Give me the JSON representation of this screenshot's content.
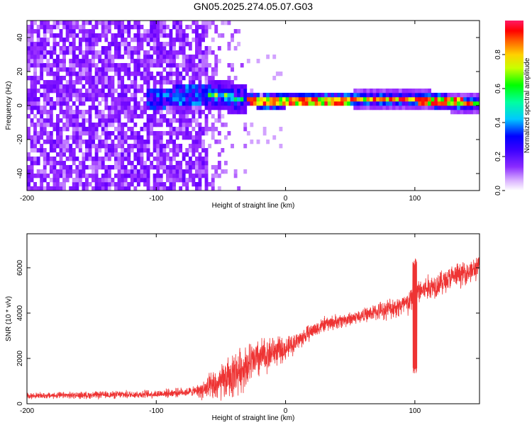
{
  "title": "GN05.2025.274.05.07.G03",
  "chart_data": [
    {
      "type": "heatmap",
      "name": "spectrogram",
      "xlabel": "Height of straight line (km)",
      "ylabel": "Frequency (Hz)",
      "xlim": [
        -200,
        150
      ],
      "ylim": [
        -50,
        50
      ],
      "xticks": [
        "-200",
        "-100",
        "0",
        "100"
      ],
      "yticks": [
        "-40",
        "-20",
        "0",
        "20",
        "40"
      ],
      "colorbar": {
        "label": "Normalized spectral amplitude",
        "range": [
          0,
          1
        ],
        "ticks": [
          "0.0",
          "0.2",
          "0.4",
          "0.6",
          "0.8"
        ],
        "colormap": [
          "#ffffff",
          "#9b30ff",
          "#6a00ff",
          "#0000ff",
          "#00c8ff",
          "#00ff00",
          "#ffff00",
          "#ff8000",
          "#ff0000",
          "#ff1a66"
        ]
      },
      "regions": [
        {
          "x_range": [
            -200,
            -62
          ],
          "freq_range": [
            -50,
            50
          ],
          "amplitude": 0.1,
          "description_color": "#7b3fff"
        },
        {
          "x_range": [
            -110,
            -60
          ],
          "freq_range": [
            -5,
            12
          ],
          "amplitude": 0.25
        },
        {
          "x_range": [
            -62,
            -20
          ],
          "freq_range": [
            -4,
            10
          ],
          "amplitude": 0.35
        },
        {
          "x_range": [
            -20,
            150
          ],
          "freq_range": [
            -2,
            4
          ],
          "amplitude": 0.9
        }
      ],
      "ridge": [
        {
          "x": -100,
          "f": 3
        },
        {
          "x": -60,
          "f": 6
        },
        {
          "x": -40,
          "f": 3
        },
        {
          "x": -20,
          "f": 1
        },
        {
          "x": 0,
          "f": 1.5
        },
        {
          "x": 50,
          "f": 2
        },
        {
          "x": 100,
          "f": 2
        },
        {
          "x": 150,
          "f": 0
        }
      ]
    },
    {
      "type": "line",
      "name": "snr",
      "xlabel": "Height of straight line (km)",
      "ylabel": "SNR (10 * v/v)",
      "xlim": [
        -200,
        150
      ],
      "ylim": [
        0,
        7500
      ],
      "xticks": [
        "-200",
        "-100",
        "0",
        "100"
      ],
      "yticks": [
        "0",
        "2000",
        "4000",
        "6000"
      ],
      "color": "#ee3333",
      "trend": {
        "x": [
          -200,
          -150,
          -100,
          -70,
          -60,
          -50,
          -40,
          -30,
          -20,
          -10,
          0,
          10,
          20,
          30,
          50,
          80,
          95,
          100,
          110,
          130,
          150
        ],
        "y": [
          350,
          380,
          430,
          550,
          650,
          900,
          1300,
          1700,
          2000,
          2300,
          2400,
          2800,
          3200,
          3500,
          3750,
          4200,
          4400,
          4900,
          5100,
          5600,
          6000
        ]
      },
      "noise": {
        "x": [
          -200,
          -70,
          -60,
          -40,
          -20,
          0,
          20,
          60,
          100,
          150
        ],
        "amplitude": [
          130,
          200,
          600,
          1000,
          900,
          500,
          350,
          300,
          600,
          500
        ]
      },
      "spikes": [
        {
          "x": 100,
          "y_min": 1300,
          "y_max": 6500
        }
      ]
    }
  ]
}
